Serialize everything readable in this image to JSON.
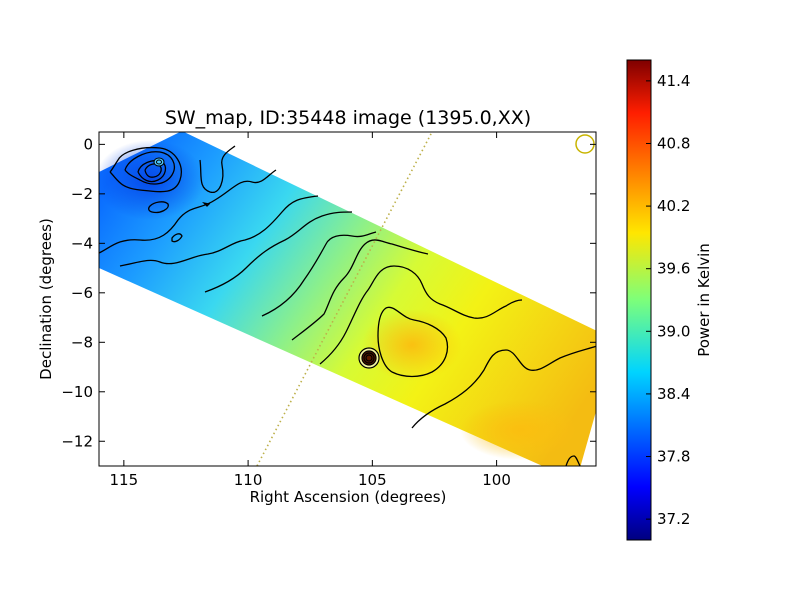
{
  "chart_data": {
    "type": "heatmap",
    "title": "SW_map, ID:35448 image (1395.0,XX)",
    "xlabel": "Right Ascension (degrees)",
    "ylabel": "Declination (degrees)",
    "xlim": [
      116,
      96
    ],
    "ylim": [
      -13,
      0.5
    ],
    "x_inverted": true,
    "x_ticks": [
      115,
      110,
      105,
      100
    ],
    "x_tick_labels": [
      "115",
      "110",
      "105",
      "100"
    ],
    "y_ticks": [
      0,
      -2,
      -4,
      -6,
      -8,
      -10,
      -12
    ],
    "y_tick_labels": [
      "0",
      "−2",
      "−4",
      "−6",
      "−8",
      "−10",
      "−12"
    ],
    "colorbar": {
      "label": "Power in Kelvin",
      "range": [
        37.0,
        41.6
      ],
      "ticks": [
        37.2,
        37.8,
        38.4,
        39.0,
        39.6,
        40.2,
        40.8,
        41.4
      ],
      "tick_labels": [
        "37.2",
        "37.8",
        "38.4",
        "39.0",
        "39.6",
        "40.2",
        "40.8",
        "41.4"
      ],
      "colormap": "jet"
    },
    "grid": false,
    "data_region": {
      "polygon": [
        [
          116,
          -1.6
        ],
        [
          112.5,
          0.3
        ],
        [
          96.5,
          -7.2
        ],
        [
          97.3,
          -12.6
        ],
        [
          98.5,
          -13.0
        ],
        [
          116,
          -5.0
        ]
      ]
    },
    "value_trend": [
      {
        "ra": 114,
        "dec": -1,
        "value": 37.9
      },
      {
        "ra": 110,
        "dec": -3,
        "value": 38.4
      },
      {
        "ra": 106,
        "dec": -5,
        "value": 39.1
      },
      {
        "ra": 104,
        "dec": -8,
        "value": 40.0
      },
      {
        "ra": 100,
        "dec": -9,
        "value": 39.8
      },
      {
        "ra": 98,
        "dec": -12,
        "value": 40.2
      }
    ],
    "features": [
      {
        "kind": "cold source",
        "ra": 113.6,
        "dec": -0.7,
        "value": 37.3
      },
      {
        "kind": "hot source",
        "ra": 105.1,
        "dec": -8.6,
        "value": 41.5
      },
      {
        "kind": "warm region",
        "ra": 104,
        "dec": -8.2,
        "value": 40.1
      }
    ],
    "reference_line": {
      "style": "dotted",
      "color": "#bdb04a",
      "from": [
        109.6,
        -13
      ],
      "to": [
        102.8,
        0.5
      ]
    },
    "marker": {
      "shape": "circle",
      "ra": 96.5,
      "dec": 0,
      "color": "#c8b400"
    }
  }
}
